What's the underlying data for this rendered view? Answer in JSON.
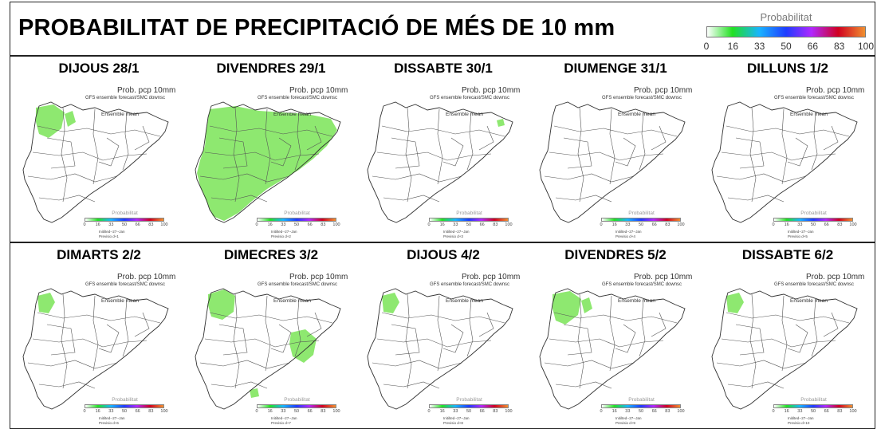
{
  "title": "PROBABILITAT DE PRECIPITACIÓ DE MÉS DE 10 mm",
  "legend": {
    "title": "Probabilitat",
    "ticks": [
      "0",
      "16",
      "33",
      "50",
      "66",
      "83",
      "100"
    ],
    "colors": [
      "#ffffff",
      "#22e022",
      "#19b4ff",
      "#1e3cff",
      "#b028ff",
      "#d00020",
      "#f09030"
    ]
  },
  "panel_text": {
    "subtitle1": "Prob. pcp 10mm",
    "subtitle2": "GFS ensemble forecast/SMC downsc",
    "ensemble": "Ensemble mean",
    "init": "Initilted--27--Jan"
  },
  "panels": [
    {
      "day": "DIJOUS 28/1",
      "prev": "Previsio d+1",
      "coverage": "nw"
    },
    {
      "day": "DIVENDRES 29/1",
      "prev": "Previsio d+2",
      "coverage": "wide"
    },
    {
      "day": "DISSABTE 30/1",
      "prev": "Previsio d+3",
      "coverage": "ne_spot"
    },
    {
      "day": "DIUMENGE 31/1",
      "prev": "Previsio d+4",
      "coverage": "none"
    },
    {
      "day": "DILLUNS 1/2",
      "prev": "Previsio d+5",
      "coverage": "none"
    },
    {
      "day": "DIMARTS 2/2",
      "prev": "Previsio d+6",
      "coverage": "nw_small"
    },
    {
      "day": "DIMECRES 3/2",
      "prev": "Previsio d+7",
      "coverage": "nw_east"
    },
    {
      "day": "DIJOUS 4/2",
      "prev": "Previsio d+8",
      "coverage": "nw_small"
    },
    {
      "day": "DIVENDRES 5/2",
      "prev": "Previsio d+9",
      "coverage": "nw"
    },
    {
      "day": "DISSABTE 6/2",
      "prev": "Previsio d+10",
      "coverage": "nw_small"
    }
  ]
}
